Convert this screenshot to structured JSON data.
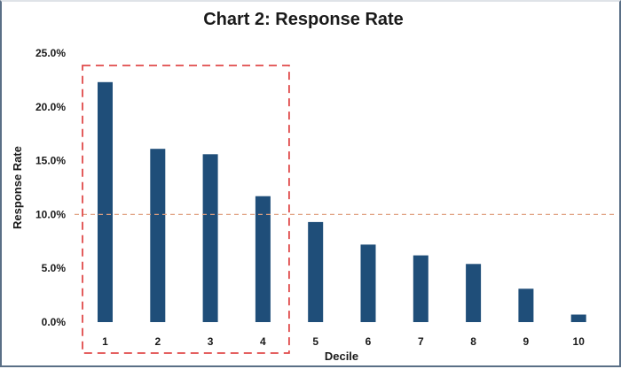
{
  "chart_data": {
    "type": "bar",
    "title": "Chart 2: Response Rate",
    "xlabel": "Decile",
    "ylabel": "Response Rate",
    "categories": [
      "1",
      "2",
      "3",
      "4",
      "5",
      "6",
      "7",
      "8",
      "9",
      "10"
    ],
    "values": [
      22.3,
      16.1,
      15.6,
      11.7,
      9.3,
      7.2,
      6.2,
      5.4,
      3.1,
      0.7
    ],
    "yticks": [
      "0.0%",
      "5.0%",
      "10.0%",
      "15.0%",
      "20.0%",
      "25.0%"
    ],
    "ylim": [
      0,
      25
    ],
    "grid": false,
    "bar_color": "#1f4e79",
    "reference_line": {
      "value": 10.0,
      "color": "#e0a080",
      "style": "dashed"
    },
    "highlight_box": {
      "categories": [
        "1",
        "2",
        "3",
        "4"
      ],
      "color": "#e04a4a",
      "style": "dashed"
    }
  }
}
